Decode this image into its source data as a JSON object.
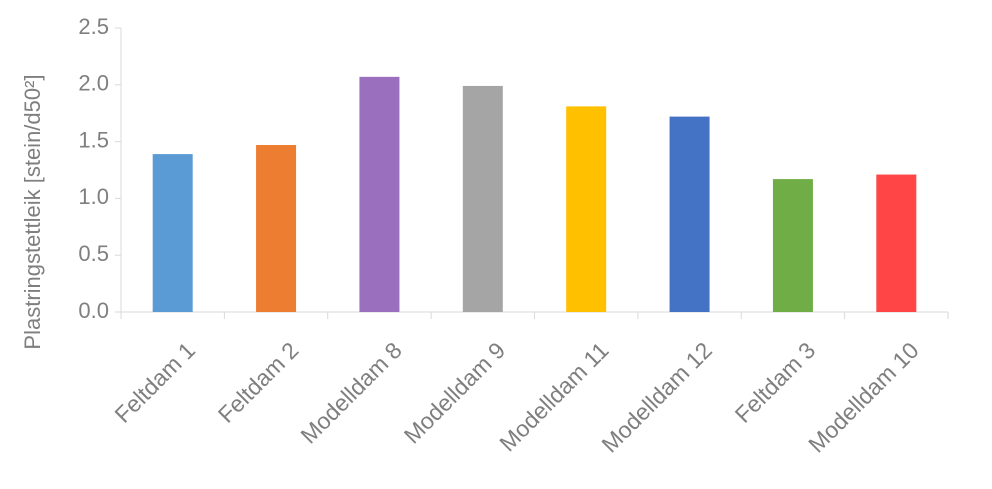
{
  "chart_data": {
    "type": "bar",
    "title": "",
    "xlabel": "",
    "ylabel": "Plastringstettleik [stein/d50²]",
    "ylim": [
      0,
      2.5
    ],
    "yticks": [
      "0.0",
      "0.5",
      "1.0",
      "1.5",
      "2.0",
      "2.5"
    ],
    "categories": [
      "Feltdam 1",
      "Feltdam 2",
      "Modelldam 8",
      "Modelldam 9",
      "Modelldam 11",
      "Modelldam 12",
      "Feltdam 3",
      "Modelldam 10"
    ],
    "values": [
      1.39,
      1.47,
      2.07,
      1.99,
      1.81,
      1.72,
      1.17,
      1.21
    ],
    "colors": [
      "#5b9bd5",
      "#ed7d31",
      "#9a6fbe",
      "#a5a5a5",
      "#ffc000",
      "#4472c4",
      "#70ad47",
      "#ff4545"
    ],
    "grid": false,
    "legend": "none"
  }
}
